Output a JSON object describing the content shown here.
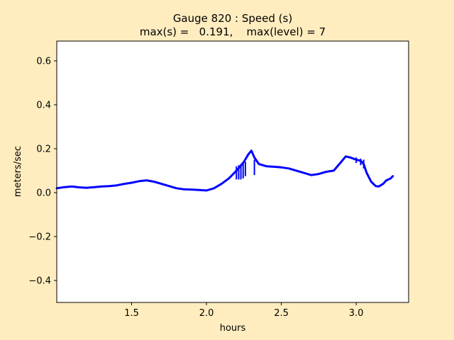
{
  "chart_data": {
    "type": "line",
    "title_line1": "Gauge 820 : Speed (s)",
    "title_line2": "max(s) =   0.191,    max(level) = 7",
    "xlabel": "hours",
    "ylabel": "meters/sec",
    "xlim": [
      1.0,
      3.35
    ],
    "ylim": [
      -0.5,
      0.69
    ],
    "xticks": [
      1.5,
      2.0,
      2.5,
      3.0
    ],
    "xtick_labels": [
      "1.5",
      "2.0",
      "2.5",
      "3.0"
    ],
    "yticks": [
      -0.4,
      -0.2,
      0.0,
      0.2,
      0.4,
      0.6
    ],
    "ytick_labels": [
      "−0.4",
      "−0.2",
      "0.0",
      "0.2",
      "0.4",
      "0.6"
    ],
    "grid": false,
    "background_color": "#ffedbf",
    "axes_color": "#ffffff",
    "series": [
      {
        "color": "#0000ff",
        "x": [
          1.0,
          1.05,
          1.1,
          1.15,
          1.2,
          1.25,
          1.3,
          1.35,
          1.4,
          1.45,
          1.5,
          1.55,
          1.6,
          1.65,
          1.7,
          1.75,
          1.8,
          1.85,
          1.9,
          1.95,
          2.0,
          2.05,
          2.1,
          2.15,
          2.2,
          2.22,
          2.25,
          2.28,
          2.3,
          2.32,
          2.35,
          2.4,
          2.45,
          2.5,
          2.55,
          2.6,
          2.65,
          2.7,
          2.75,
          2.8,
          2.85,
          2.9,
          2.93,
          2.96,
          3.0,
          3.03,
          3.05,
          3.07,
          3.1,
          3.13,
          3.15,
          3.18,
          3.2,
          3.23,
          3.245
        ],
        "y": [
          0.02,
          0.025,
          0.028,
          0.024,
          0.022,
          0.025,
          0.028,
          0.03,
          0.033,
          0.04,
          0.045,
          0.052,
          0.056,
          0.05,
          0.04,
          0.03,
          0.02,
          0.015,
          0.014,
          0.012,
          0.01,
          0.02,
          0.04,
          0.065,
          0.1,
          0.115,
          0.14,
          0.175,
          0.191,
          0.16,
          0.13,
          0.12,
          0.118,
          0.115,
          0.11,
          0.1,
          0.09,
          0.08,
          0.085,
          0.095,
          0.1,
          0.14,
          0.165,
          0.16,
          0.15,
          0.145,
          0.13,
          0.09,
          0.05,
          0.03,
          0.028,
          0.04,
          0.055,
          0.065,
          0.075
        ]
      }
    ],
    "spikes": [
      {
        "x": 2.2,
        "y_low": 0.06,
        "y_high": 0.12
      },
      {
        "x": 2.215,
        "y_low": 0.06,
        "y_high": 0.125
      },
      {
        "x": 2.23,
        "y_low": 0.06,
        "y_high": 0.13
      },
      {
        "x": 2.245,
        "y_low": 0.065,
        "y_high": 0.135
      },
      {
        "x": 2.26,
        "y_low": 0.075,
        "y_high": 0.14
      },
      {
        "x": 2.32,
        "y_low": 0.08,
        "y_high": 0.15
      },
      {
        "x": 3.0,
        "y_low": 0.135,
        "y_high": 0.16
      },
      {
        "x": 3.03,
        "y_low": 0.125,
        "y_high": 0.155
      },
      {
        "x": 3.05,
        "y_low": 0.11,
        "y_high": 0.15
      }
    ]
  }
}
